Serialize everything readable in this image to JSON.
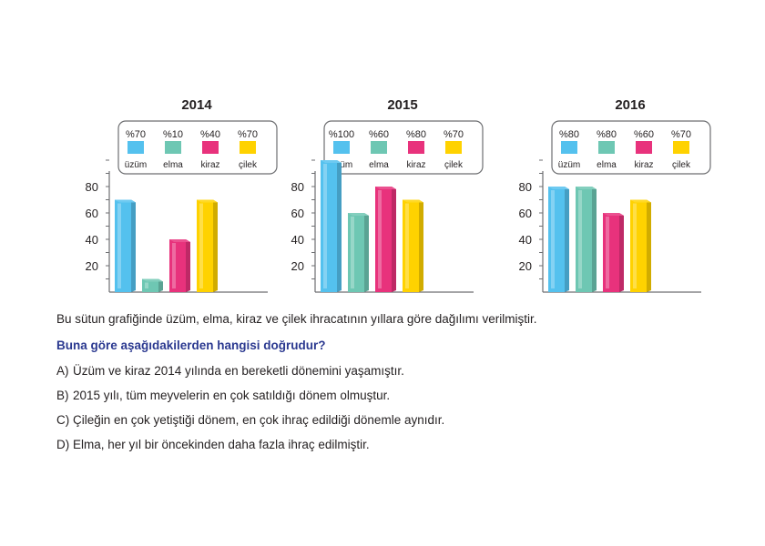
{
  "chart_data": [
    {
      "type": "bar",
      "title": "2014",
      "categories": [
        "üzüm",
        "elma",
        "kiraz",
        "çilek"
      ],
      "values": [
        70,
        10,
        40,
        70
      ],
      "percent_labels": [
        "%70",
        "%10",
        "%40",
        "%70"
      ],
      "colors": [
        "#54c1ee",
        "#6ec7b3",
        "#e8327c",
        "#ffd200"
      ],
      "yticks": [
        "20",
        "40",
        "60",
        "80"
      ],
      "ylim": [
        0,
        100
      ],
      "legend": "top"
    },
    {
      "type": "bar",
      "title": "2015",
      "categories": [
        "üzüm",
        "elma",
        "kiraz",
        "çilek"
      ],
      "values": [
        100,
        60,
        80,
        70
      ],
      "percent_labels": [
        "%100",
        "%60",
        "%80",
        "%70"
      ],
      "colors": [
        "#54c1ee",
        "#6ec7b3",
        "#e8327c",
        "#ffd200"
      ],
      "yticks": [
        "20",
        "40",
        "60",
        "80"
      ],
      "ylim": [
        0,
        100
      ],
      "legend": "top"
    },
    {
      "type": "bar",
      "title": "2016",
      "categories": [
        "üzüm",
        "elma",
        "kiraz",
        "çilek"
      ],
      "values": [
        80,
        80,
        60,
        70
      ],
      "percent_labels": [
        "%80",
        "%80",
        "%60",
        "%70"
      ],
      "colors": [
        "#54c1ee",
        "#6ec7b3",
        "#e8327c",
        "#ffd200"
      ],
      "yticks": [
        "20",
        "40",
        "60",
        "80"
      ],
      "ylim": [
        0,
        100
      ],
      "legend": "top"
    }
  ],
  "question": {
    "intro": "Bu sütun grafiğinde üzüm, elma, kiraz ve çilek ihracatının yıllara göre dağılımı verilmiştir.",
    "prompt": "Buna göre aşağıdakilerden hangisi doğrudur?",
    "options": [
      {
        "letter": "A)",
        "text": "Üzüm ve kiraz 2014 yılında en bereketli dönemini yaşamıştır."
      },
      {
        "letter": "B)",
        "text": "2015 yılı, tüm meyvelerin en çok satıldığı dönem olmuştur."
      },
      {
        "letter": "C)",
        "text": "Çileğin en çok yetiştiği dönem, en çok ihraç edildiği dönemle aynıdır."
      },
      {
        "letter": "D)",
        "text": "Elma, her yıl bir öncekinden daha fazla ihraç edilmiştir."
      }
    ]
  }
}
